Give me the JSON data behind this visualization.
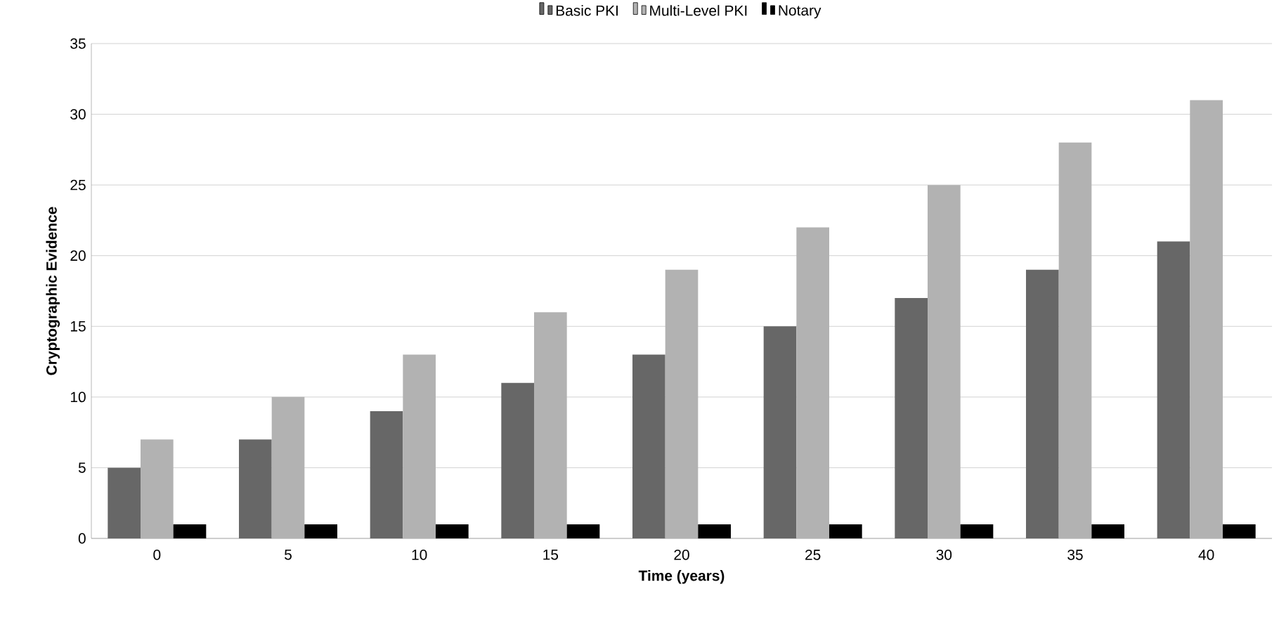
{
  "chart_data": {
    "type": "bar",
    "xlabel": "Time (years)",
    "ylabel": "Cryptographic Evidence",
    "categories": [
      "0",
      "5",
      "10",
      "15",
      "20",
      "25",
      "30",
      "35",
      "40"
    ],
    "series": [
      {
        "name": "Basic PKI",
        "color": "#676767",
        "values": [
          5,
          7,
          9,
          11,
          13,
          15,
          17,
          19,
          21
        ]
      },
      {
        "name": "Multi-Level PKI",
        "color": "#b2b2b2",
        "values": [
          7,
          10,
          13,
          16,
          19,
          22,
          25,
          28,
          31
        ]
      },
      {
        "name": "Notary",
        "color": "#000000",
        "values": [
          1,
          1,
          1,
          1,
          1,
          1,
          1,
          1,
          1
        ]
      }
    ],
    "ylim": [
      0,
      35
    ],
    "yticks": [
      0,
      5,
      10,
      15,
      20,
      25,
      30,
      35
    ],
    "grid": "y",
    "legend": "top"
  }
}
